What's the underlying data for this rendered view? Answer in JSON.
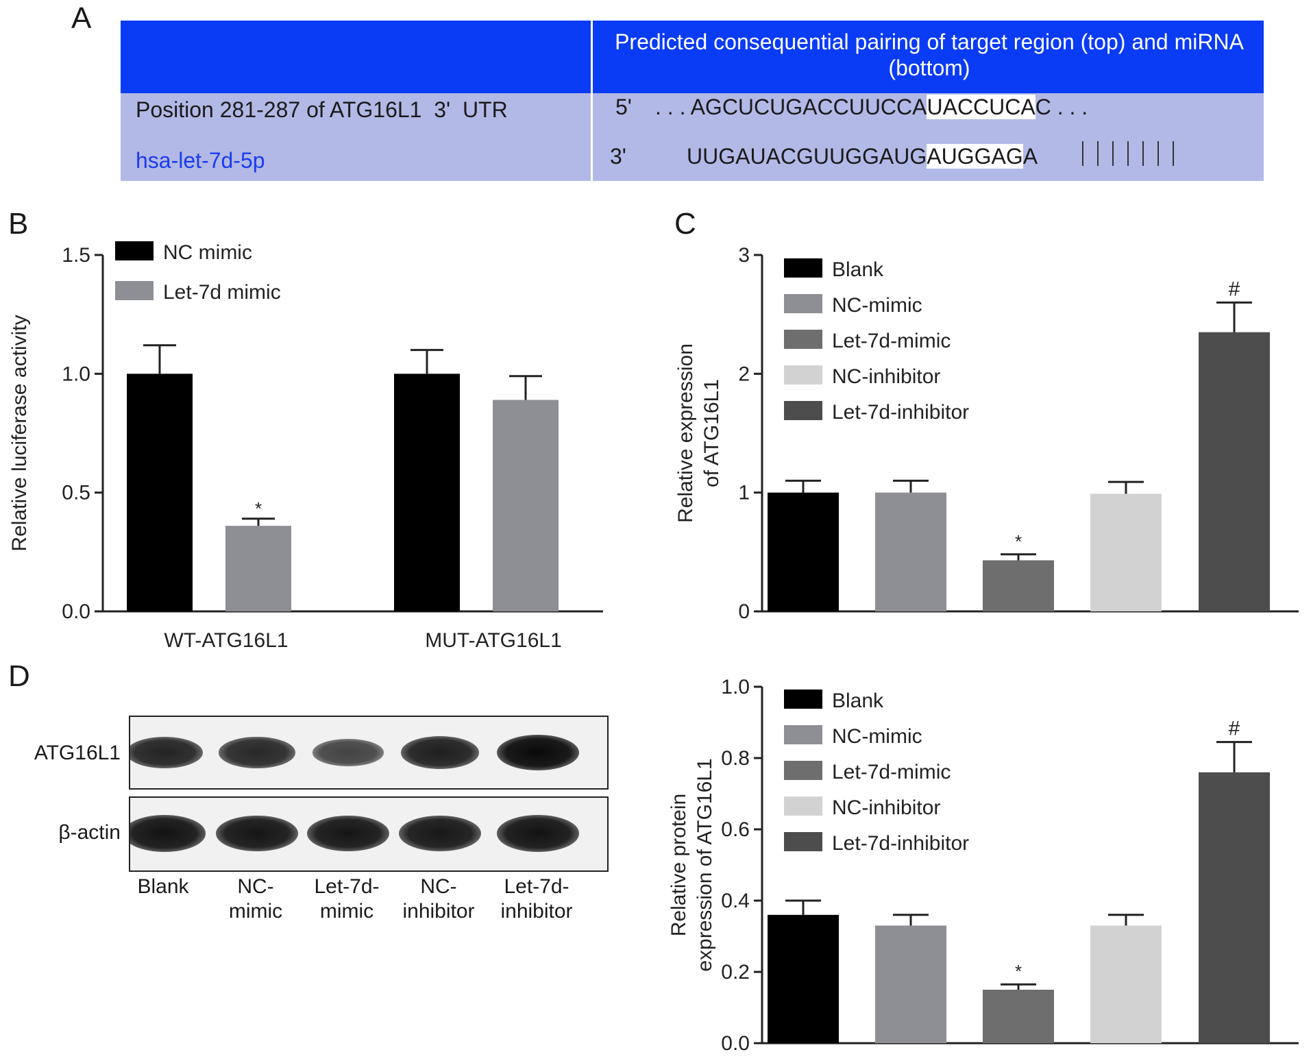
{
  "panels": {
    "a": "A",
    "b": "B",
    "c": "C",
    "d": "D"
  },
  "panel_a": {
    "header": "Predicted consequential pairing of target region (top) and miRNA (bottom)",
    "row1_label": "Position 281-287 of ATG16L1  3'  UTR",
    "row2_label": "hsa-let-7d-5p",
    "top_prime": "5'",
    "top_lead": ". . . AGCUCUGACCUUCCA",
    "top_hl": "UACCUCA",
    "top_tail": "C . . .",
    "bottom_prime": "3'",
    "bottom_lead": "UUGAUACGUUGGAUG",
    "bottom_hl": "AUGGAG",
    "bottom_tail": "A",
    "header_color": "#0a3bf5",
    "body_color": "#b3b9e6",
    "mirna_color": "#1a3cf0"
  },
  "panel_d_blot": {
    "rows": [
      "ATG16L1",
      "β-actin"
    ],
    "lanes": [
      "Blank",
      "NC-\nmimic",
      "Let-7d-\nmimic",
      "NC-\ninhibitor",
      "Let-7d-\ninhibitor"
    ],
    "atg16l1_band_intensity": [
      0.75,
      0.72,
      0.45,
      0.8,
      1.0
    ],
    "actin_band_intensity": [
      0.9,
      0.88,
      0.88,
      0.86,
      0.9
    ]
  },
  "chart_data": [
    {
      "id": "B",
      "type": "bar",
      "categories": [
        "WT-ATG16L1",
        "MUT-ATG16L1"
      ],
      "series": [
        {
          "name": "NC mimic",
          "color": "#000000",
          "values": [
            1.0,
            1.0
          ],
          "errors": [
            0.12,
            0.1
          ],
          "annotations": [
            "",
            ""
          ]
        },
        {
          "name": "Let-7d mimic",
          "color": "#8e8e95",
          "values": [
            0.36,
            0.89
          ],
          "errors": [
            0.03,
            0.1
          ],
          "annotations": [
            "*",
            ""
          ]
        }
      ],
      "ylabel": "Relative luciferase activity",
      "ylim": [
        0,
        1.5
      ],
      "yticks": [
        "0.0",
        "0.5",
        "1.0",
        "1.5"
      ],
      "legend": "top-left"
    },
    {
      "id": "C",
      "type": "bar",
      "categories": [
        "Blank",
        "NC-mimic",
        "Let-7d-mimic",
        "NC-inhibitor",
        "Let-7d-inhibitor"
      ],
      "values": [
        1.0,
        1.0,
        0.43,
        0.99,
        2.35
      ],
      "errors": [
        0.1,
        0.1,
        0.05,
        0.1,
        0.25
      ],
      "colors": [
        "#000000",
        "#8e8e95",
        "#6e6e6e",
        "#d2d2d2",
        "#4d4d4d"
      ],
      "annotations": [
        "",
        "",
        "*",
        "",
        "#"
      ],
      "ylabel": "Relative expression of ATG16L1",
      "ylim": [
        0,
        3
      ],
      "yticks": [
        "0",
        "1",
        "2",
        "3"
      ],
      "legend": "top-left"
    },
    {
      "id": "D",
      "type": "bar",
      "categories": [
        "Blank",
        "NC-mimic",
        "Let-7d-mimic",
        "NC-inhibitor",
        "Let-7d-inhibitor"
      ],
      "values": [
        0.36,
        0.33,
        0.15,
        0.33,
        0.76
      ],
      "errors": [
        0.04,
        0.03,
        0.015,
        0.03,
        0.085
      ],
      "colors": [
        "#000000",
        "#8e8e95",
        "#6e6e6e",
        "#d2d2d2",
        "#4d4d4d"
      ],
      "annotations": [
        "",
        "",
        "*",
        "",
        "#"
      ],
      "ylabel": "Relative protein expression of ATG16L1",
      "ylim": [
        0,
        1.0
      ],
      "yticks": [
        "0.0",
        "0.2",
        "0.4",
        "0.6",
        "0.8",
        "1.0"
      ],
      "legend": "top-left"
    }
  ]
}
